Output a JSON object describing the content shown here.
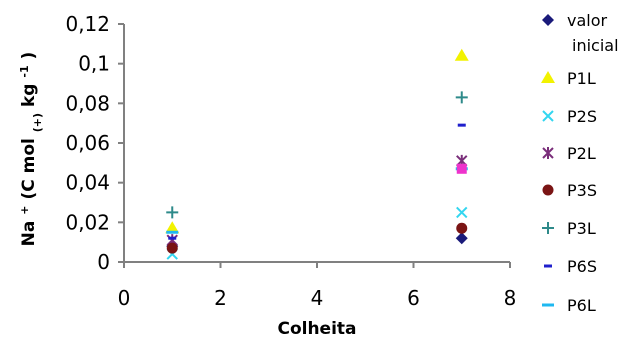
{
  "chart_data": {
    "type": "scatter",
    "title": "",
    "xlabel": "Colheita",
    "ylabel": {
      "base": "Na",
      "sup1": "+",
      "mid": " (C mol",
      "sub": "(+)",
      "mid2": " kg",
      "sup2": "-1",
      "end": ")"
    },
    "xlim": [
      0,
      8
    ],
    "ylim": [
      0,
      0.12
    ],
    "x_ticks": [
      0,
      2,
      4,
      6,
      8
    ],
    "x_tick_labels": [
      "0",
      "2",
      "4",
      "6",
      "8"
    ],
    "y_ticks": [
      0,
      0.02,
      0.04,
      0.06,
      0.08,
      0.1,
      0.12
    ],
    "y_tick_labels": [
      "0",
      "0,02",
      "0,04",
      "0,06",
      "0,08",
      "0,1",
      "0,12"
    ],
    "grid": false,
    "legend_position": "right",
    "series": [
      {
        "name": "valor inicial",
        "name_lines": [
          "valor",
          "inicial"
        ],
        "marker": "diamond",
        "color": "#1a1a7a",
        "x": [
          1,
          7
        ],
        "y": [
          0.008,
          0.012
        ]
      },
      {
        "name": "P1L",
        "marker": "triangle",
        "color": "#f2f200",
        "x": [
          1,
          7
        ],
        "y": [
          0.017,
          0.104
        ]
      },
      {
        "name": "P2S",
        "marker": "x",
        "color": "#33d6f0",
        "x": [
          1,
          7
        ],
        "y": [
          0.004,
          0.025
        ]
      },
      {
        "name": "P2L",
        "marker": "asterisk",
        "color": "#7a2e7a",
        "x": [
          1,
          7
        ],
        "y": [
          0.011,
          0.051
        ]
      },
      {
        "name": "P3S",
        "marker": "circle",
        "color": "#7a1414",
        "x": [
          1,
          7
        ],
        "y": [
          0.007,
          0.017
        ]
      },
      {
        "name": "P3L",
        "marker": "plus",
        "color": "#2e8a8a",
        "x": [
          1,
          7
        ],
        "y": [
          0.025,
          0.083
        ]
      },
      {
        "name": "P6S",
        "marker": "dash-short",
        "color": "#1f1fcc",
        "x": [
          1,
          7
        ],
        "y": [
          0.012,
          0.069
        ]
      },
      {
        "name": "P6L",
        "marker": "dash-long",
        "color": "#1fb8f0",
        "x": [
          1,
          7
        ],
        "y": [
          0.015,
          0.047
        ]
      }
    ],
    "extra_points": [
      {
        "marker": "square",
        "color": "#ee33cc",
        "x": 7,
        "y": 0.047
      }
    ]
  }
}
